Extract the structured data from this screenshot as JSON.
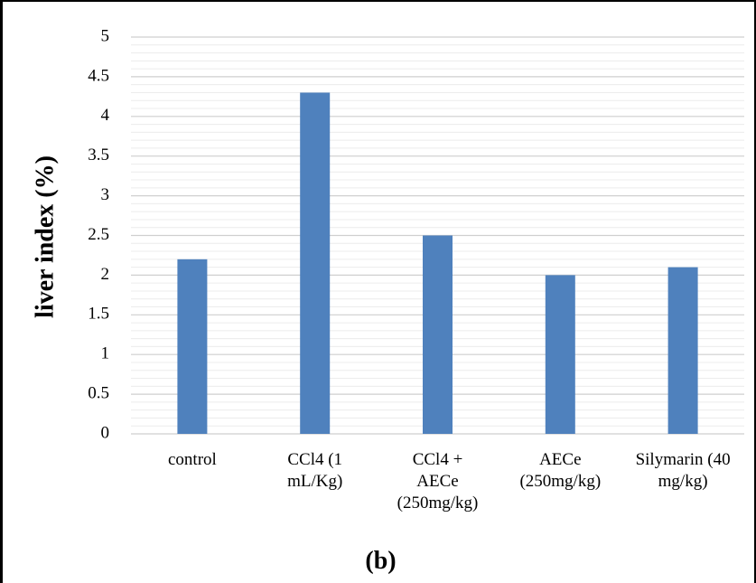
{
  "panel_label": "(b)",
  "chart_data": {
    "type": "bar",
    "title": "",
    "xlabel": "",
    "ylabel": "liver index (%)",
    "ylim": [
      0,
      5
    ],
    "y_ticks": [
      "0",
      "0.5",
      "1",
      "1.5",
      "2",
      "2.5",
      "3",
      "3.5",
      "4",
      "4.5",
      "5"
    ],
    "categories": [
      [
        "control"
      ],
      [
        "CCl4 (1",
        "mL/Kg)"
      ],
      [
        "CCl4  +",
        "AECe",
        "(250mg/kg)"
      ],
      [
        "AECe",
        "(250mg/kg)"
      ],
      [
        "Silymarin (40",
        "mg/kg)"
      ]
    ],
    "values": [
      2.2,
      4.3,
      2.5,
      2.0,
      2.1
    ],
    "grid": true,
    "bar_color": "#4f81bd",
    "grid_color": "#d9d9d9"
  }
}
